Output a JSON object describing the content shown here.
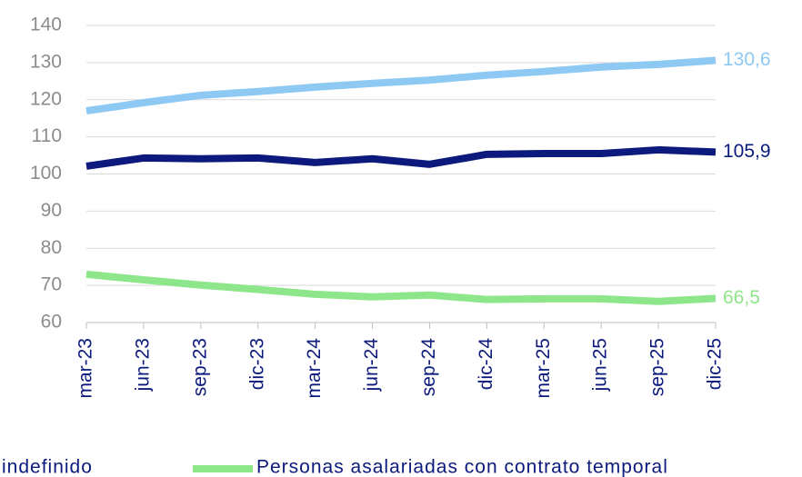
{
  "chart_data": {
    "type": "line",
    "categories": [
      "mar-23",
      "jun-23",
      "sep-23",
      "dic-23",
      "mar-24",
      "jun-24",
      "sep-24",
      "dic-24",
      "mar-25",
      "jun-25",
      "sep-25",
      "dic-25"
    ],
    "series": [
      {
        "name": "indefinido",
        "color": "#8ec9f4",
        "values": [
          117,
          119.2,
          121.2,
          122.2,
          123.4,
          124.4,
          125.3,
          126.6,
          127.6,
          128.8,
          129.5,
          130.6
        ],
        "value_labels": [
          null,
          null,
          null,
          null,
          null,
          null,
          null,
          null,
          null,
          null,
          null,
          "130,6"
        ]
      },
      {
        "color": "#0b1a7c",
        "values": [
          102.1,
          104.3,
          104.1,
          104.3,
          103.1,
          104.1,
          102.6,
          105.3,
          105.5,
          105.5,
          106.5,
          105.9
        ],
        "value_labels": [
          null,
          null,
          null,
          null,
          null,
          null,
          null,
          null,
          null,
          null,
          null,
          "105,9"
        ]
      },
      {
        "name": "Personas asalariadas con contrato temporal",
        "color": "#8ee68a",
        "values": [
          73,
          71.5,
          70.1,
          68.9,
          67.6,
          66.9,
          67.4,
          66.2,
          66.4,
          66.4,
          65.7,
          66.5
        ],
        "value_labels": [
          null,
          null,
          null,
          null,
          null,
          null,
          null,
          null,
          null,
          null,
          null,
          "66,5"
        ]
      }
    ],
    "ylim": [
      60,
      140
    ],
    "yticks": [
      60,
      70,
      80,
      90,
      100,
      110,
      120,
      130,
      140
    ],
    "grid": true
  }
}
